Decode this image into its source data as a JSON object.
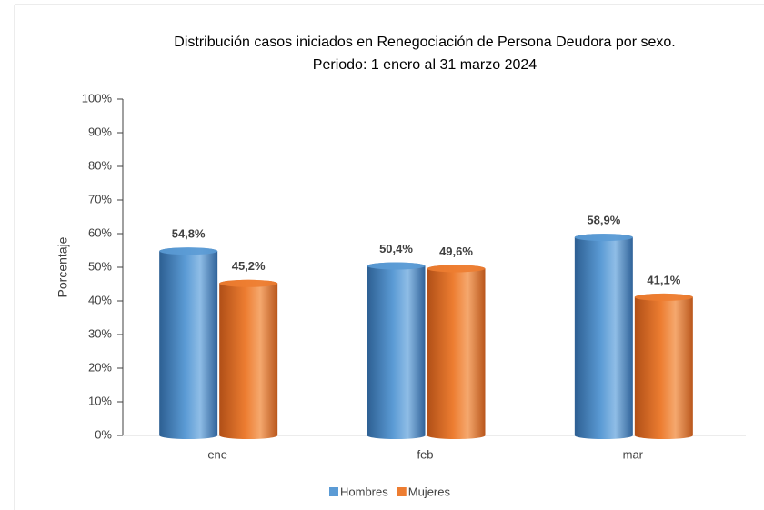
{
  "chart_data": {
    "type": "bar",
    "title": "Distribución casos iniciados en Renegociación de Persona Deudora por sexo.",
    "subtitle": "Periodo: 1 enero al 31 marzo 2024",
    "y_label": "Porcentaje",
    "categories": [
      "ene",
      "feb",
      "mar"
    ],
    "series": [
      {
        "name": "Hombres",
        "color": "#5b9bd5",
        "values": [
          54.8,
          50.4,
          58.9
        ],
        "value_labels": [
          "54,8%",
          "50,4%",
          "58,9%"
        ]
      },
      {
        "name": "Mujeres",
        "color": "#ed7d31",
        "values": [
          45.2,
          49.6,
          41.1
        ],
        "value_labels": [
          "45,2%",
          "49,6%",
          "41,1%"
        ]
      }
    ],
    "ylim": [
      0,
      100
    ],
    "yticks": [
      {
        "value": 0,
        "label": "0%"
      },
      {
        "value": 10,
        "label": "10%"
      },
      {
        "value": 20,
        "label": "20%"
      },
      {
        "value": 30,
        "label": "30%"
      },
      {
        "value": 40,
        "label": "40%"
      },
      {
        "value": 50,
        "label": "50%"
      },
      {
        "value": 60,
        "label": "60%"
      },
      {
        "value": 70,
        "label": "70%"
      },
      {
        "value": 80,
        "label": "80%"
      },
      {
        "value": 90,
        "label": "90%"
      },
      {
        "value": 100,
        "label": "100%"
      }
    ],
    "legend": "bottom"
  }
}
